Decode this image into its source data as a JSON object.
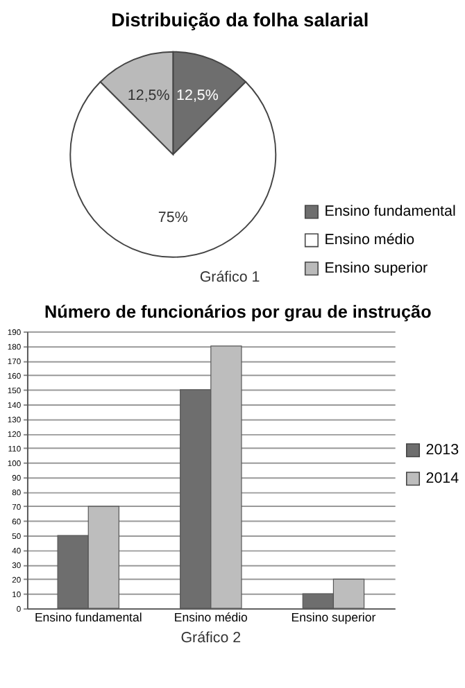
{
  "chart_data": [
    {
      "type": "pie",
      "title": "Distribuição da folha salarial",
      "categories": [
        "Ensino fundamental",
        "Ensino médio",
        "Ensino superior"
      ],
      "values": [
        12.5,
        75,
        12.5
      ],
      "colors": [
        "#6e6e6e",
        "#ffffff",
        "#bababa"
      ],
      "value_labels": [
        "12,5%",
        "75%",
        "12,5%"
      ],
      "legend": "bottom right",
      "annotations": [
        "Gráfico 1"
      ]
    },
    {
      "type": "bar",
      "title": "Número de funcionários por grau de instrução",
      "categories": [
        "Ensino fundamental",
        "Ensino médio",
        "Ensino superior"
      ],
      "series": [
        {
          "name": "2013",
          "color": "#6e6e6e",
          "values": [
            50,
            150,
            10
          ]
        },
        {
          "name": "2014",
          "color": "#bdbdbd",
          "values": [
            70,
            180,
            20
          ]
        }
      ],
      "ylim": [
        0,
        190
      ],
      "yticks": [
        0,
        10,
        20,
        30,
        40,
        50,
        60,
        70,
        80,
        90,
        100,
        110,
        120,
        130,
        140,
        150,
        160,
        170,
        180,
        190
      ],
      "grid": "y",
      "legend": "right",
      "annotations": [
        "Gráfico 2"
      ]
    }
  ]
}
